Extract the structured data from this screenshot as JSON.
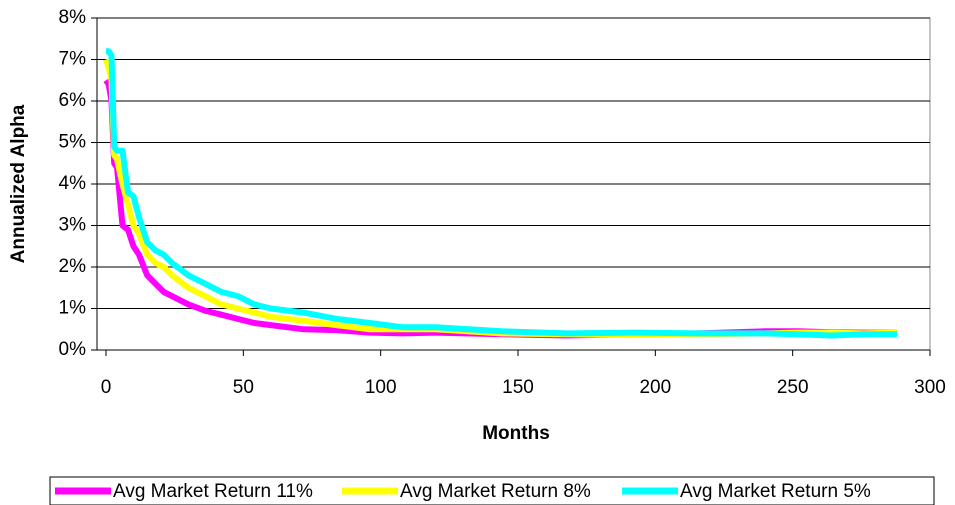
{
  "chart_data": {
    "type": "line",
    "x_label": "Months",
    "y_label": "Annualized Alpha",
    "x": [
      0,
      1,
      2,
      3,
      4,
      6,
      8,
      10,
      12,
      15,
      18,
      21,
      24,
      30,
      36,
      42,
      48,
      54,
      60,
      72,
      84,
      96,
      108,
      120,
      144,
      168,
      192,
      216,
      240,
      252,
      264,
      276,
      288
    ],
    "series": [
      {
        "name": "Avg Market Return 11%",
        "color": "#ff00ff",
        "values": [
          6.5,
          6.4,
          6.0,
          4.5,
          4.4,
          3.0,
          2.9,
          2.5,
          2.3,
          1.8,
          1.6,
          1.4,
          1.3,
          1.1,
          0.95,
          0.85,
          0.75,
          0.65,
          0.6,
          0.5,
          0.48,
          0.42,
          0.4,
          0.42,
          0.38,
          0.35,
          0.38,
          0.4,
          0.45,
          0.45,
          0.43,
          0.42,
          0.42
        ]
      },
      {
        "name": "Avg Market Return 8%",
        "color": "#ffff00",
        "values": [
          7.0,
          6.8,
          6.5,
          4.7,
          4.6,
          4.0,
          3.5,
          3.0,
          2.8,
          2.3,
          2.1,
          2.0,
          1.8,
          1.5,
          1.3,
          1.1,
          1.0,
          0.9,
          0.8,
          0.7,
          0.6,
          0.5,
          0.5,
          0.5,
          0.4,
          0.38,
          0.36,
          0.38,
          0.4,
          0.42,
          0.42,
          0.4,
          0.42
        ]
      },
      {
        "name": "Avg Market Return 5%",
        "color": "#00ffff",
        "values": [
          7.2,
          7.2,
          7.1,
          4.9,
          4.8,
          4.8,
          3.8,
          3.7,
          3.2,
          2.6,
          2.4,
          2.3,
          2.1,
          1.8,
          1.6,
          1.4,
          1.3,
          1.1,
          1.0,
          0.9,
          0.75,
          0.65,
          0.55,
          0.55,
          0.45,
          0.4,
          0.42,
          0.4,
          0.4,
          0.38,
          0.35,
          0.38,
          0.38
        ]
      }
    ],
    "xlim": [
      0,
      300
    ],
    "xticks": [
      0,
      50,
      100,
      150,
      200,
      250,
      300
    ],
    "ylim": [
      0,
      8
    ],
    "yticks": [
      {
        "value": 0,
        "label": "0%"
      },
      {
        "value": 1,
        "label": "1%"
      },
      {
        "value": 2,
        "label": "2%"
      },
      {
        "value": 3,
        "label": "3%"
      },
      {
        "value": 4,
        "label": "4%"
      },
      {
        "value": 5,
        "label": "5%"
      },
      {
        "value": 6,
        "label": "6%"
      },
      {
        "value": 7,
        "label": "7%"
      },
      {
        "value": 8,
        "label": "8%"
      }
    ],
    "grid": true,
    "legend": "bottom"
  }
}
